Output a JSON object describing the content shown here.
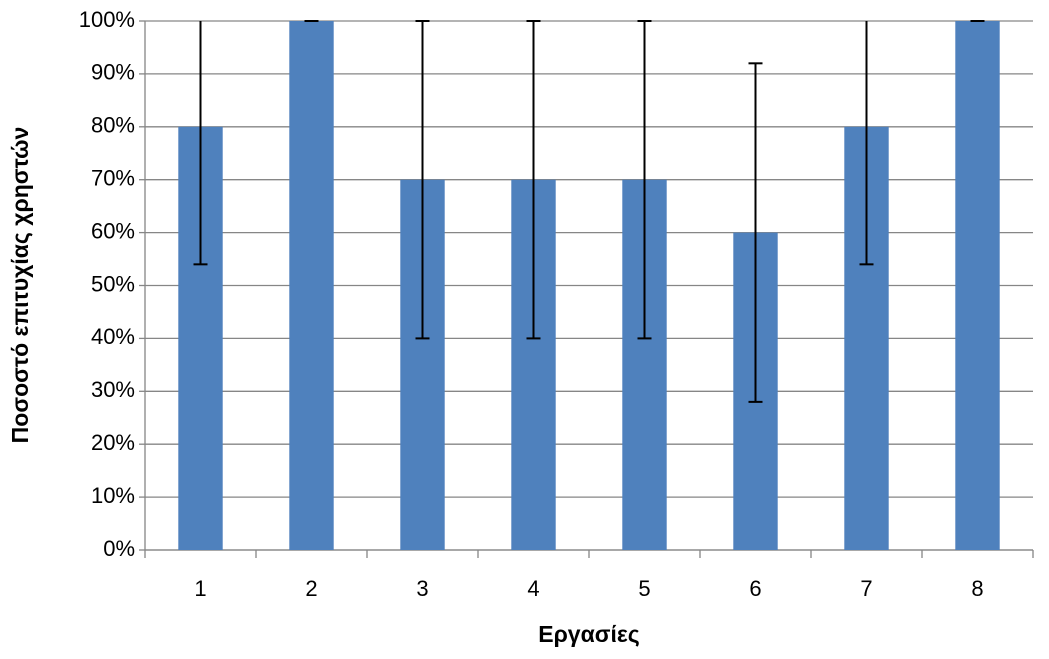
{
  "chart_data": {
    "type": "bar",
    "y_label": "Ποσοστό επιτυχίας χρηστών",
    "x_label": "Εργασίες",
    "categories": [
      "1",
      "2",
      "3",
      "4",
      "5",
      "6",
      "7",
      "8"
    ],
    "values": [
      80,
      100,
      70,
      70,
      70,
      60,
      80,
      100
    ],
    "errors": [
      26,
      0,
      30,
      30,
      30,
      32,
      26,
      0
    ],
    "color": "#4f81bd",
    "ylim": [
      0,
      100
    ],
    "yticks": [
      {
        "value": 0,
        "label": "0%"
      },
      {
        "value": 10,
        "label": "10%"
      },
      {
        "value": 20,
        "label": "20%"
      },
      {
        "value": 30,
        "label": "30%"
      },
      {
        "value": 40,
        "label": "40%"
      },
      {
        "value": 50,
        "label": "50%"
      },
      {
        "value": 60,
        "label": "60%"
      },
      {
        "value": 70,
        "label": "70%"
      },
      {
        "value": 80,
        "label": "80%"
      },
      {
        "value": 90,
        "label": "90%"
      },
      {
        "value": 100,
        "label": "100%"
      }
    ],
    "grid": true
  }
}
